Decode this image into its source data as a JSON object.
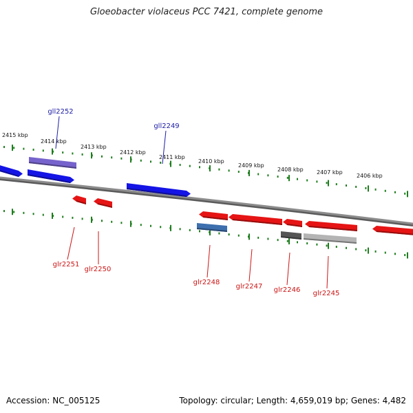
{
  "title": "Gloeobacter violaceus PCC 7421, complete genome",
  "footer": {
    "accession": "Accession: NC_005125",
    "summary": "Topology: circular; Length: 4,659,019 bp; Genes: 4,482"
  },
  "colors": {
    "backbone": "#8c8c8c",
    "ruler": "#1e7d1e",
    "plus_label": "#1a1aa6",
    "minus_label": "#cc1414"
  },
  "scale": {
    "labels": [
      "2415 kbp",
      "2414 kbp",
      "2413 kbp",
      "2412 kbp",
      "2411 kbp",
      "2410 kbp",
      "2409 kbp",
      "2408 kbp",
      "2407 kbp",
      "2406 kbp"
    ]
  },
  "genes": [
    {
      "name": "gll2252",
      "strand": "+",
      "color": "#7763cc",
      "shown_label": true
    },
    {
      "name": "gll2249",
      "strand": "+",
      "color": "#1414e6",
      "shown_label": true
    },
    {
      "name": "glr2251",
      "strand": "-",
      "color": "#e61414",
      "shown_label": true
    },
    {
      "name": "glr2250",
      "strand": "-",
      "color": "#e61414",
      "shown_label": true
    },
    {
      "name": "glr2248",
      "strand": "-",
      "color": "#e61414",
      "shown_label": true
    },
    {
      "name": "glr2247",
      "strand": "-",
      "color": "#e61414",
      "shown_label": true
    },
    {
      "name": "glr2246",
      "strand": "-",
      "color": "#e61414",
      "shown_label": true
    },
    {
      "name": "glr2245",
      "strand": "-",
      "color": "#e61414",
      "shown_label": true
    }
  ],
  "feature_colors": {
    "cds_plus": "#1414e6",
    "cds_minus": "#e61414",
    "rna": "#7763cc",
    "misc_blue": "#3d6fae",
    "misc_dark": "#555555",
    "misc_light": "#b4b4b4"
  }
}
